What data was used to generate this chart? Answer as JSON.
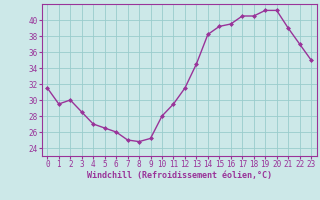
{
  "x": [
    0,
    1,
    2,
    3,
    4,
    5,
    6,
    7,
    8,
    9,
    10,
    11,
    12,
    13,
    14,
    15,
    16,
    17,
    18,
    19,
    20,
    21,
    22,
    23
  ],
  "y": [
    31.5,
    29.5,
    30.0,
    28.5,
    27.0,
    26.5,
    26.0,
    25.0,
    24.8,
    25.2,
    28.0,
    29.5,
    31.5,
    34.5,
    38.2,
    39.2,
    39.5,
    40.5,
    40.5,
    41.2,
    41.2,
    39.0,
    37.0,
    35.0
  ],
  "line_color": "#993399",
  "marker": "D",
  "marker_size": 2.0,
  "bg_color": "#cce8e8",
  "grid_color": "#99cccc",
  "xlabel": "Windchill (Refroidissement éolien,°C)",
  "xlabel_color": "#993399",
  "tick_color": "#993399",
  "axis_color": "#993399",
  "ylim": [
    23,
    42
  ],
  "yticks": [
    24,
    26,
    28,
    30,
    32,
    34,
    36,
    38,
    40
  ],
  "xlim": [
    -0.5,
    23.5
  ],
  "xticks": [
    0,
    1,
    2,
    3,
    4,
    5,
    6,
    7,
    8,
    9,
    10,
    11,
    12,
    13,
    14,
    15,
    16,
    17,
    18,
    19,
    20,
    21,
    22,
    23
  ],
  "xtick_labels": [
    "0",
    "1",
    "2",
    "3",
    "4",
    "5",
    "6",
    "7",
    "8",
    "9",
    "10",
    "11",
    "12",
    "13",
    "14",
    "15",
    "16",
    "17",
    "18",
    "19",
    "20",
    "21",
    "22",
    "23"
  ],
  "ytick_labels": [
    "24",
    "26",
    "28",
    "30",
    "32",
    "34",
    "36",
    "38",
    "40"
  ],
  "tick_fontsize": 5.5,
  "xlabel_fontsize": 6.0,
  "linewidth": 1.0
}
